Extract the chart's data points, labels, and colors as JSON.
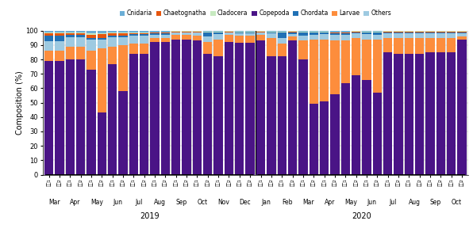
{
  "tick_labels": [
    "정스1",
    "정스2",
    "정스1",
    "정스2",
    "정스1",
    "정스2",
    "정스1",
    "정스2",
    "정스1",
    "정스2",
    "정스1",
    "정스2",
    "정스1",
    "정스2",
    "정스1",
    "정스2",
    "정스1",
    "정스2",
    "정스1",
    "정스2",
    "정스1",
    "정스2",
    "정스1",
    "정스2",
    "정스1",
    "정스2",
    "정스1",
    "정스2",
    "정스1",
    "정스2",
    "정스1",
    "정스2",
    "정스1",
    "정스2",
    "정스1",
    "정스2",
    "정스1",
    "정스2",
    "정스1",
    "정스2"
  ],
  "month_labels": [
    "Mar",
    "Apr",
    "May",
    "Jun",
    "Jul",
    "Aug",
    "Sep",
    "Oct",
    "Nov",
    "Dec",
    "Jan",
    "Feb",
    "Mar",
    "Apr",
    "May",
    "Jun",
    "Jul",
    "Aug",
    "Sep",
    "Oct"
  ],
  "year_labels": [
    "2019",
    "2020"
  ],
  "copepoda": [
    79,
    79,
    80,
    80,
    73,
    43,
    77,
    58,
    84,
    84,
    92,
    92,
    94,
    94,
    93,
    84,
    82,
    92,
    92,
    92,
    93,
    82,
    82,
    93,
    80,
    49,
    51,
    56,
    64,
    69,
    66,
    57,
    85,
    84,
    84,
    84,
    85,
    85,
    85,
    94
  ],
  "larvae": [
    7.0,
    7.0,
    9.0,
    9.0,
    13.0,
    45.0,
    12.0,
    32.0,
    7.0,
    7.0,
    3.0,
    3.0,
    3.0,
    3.0,
    3.5,
    8.0,
    12.0,
    5.0,
    5.0,
    5.0,
    4.0,
    13.0,
    9.0,
    3.0,
    13.0,
    45.0,
    43.0,
    37.0,
    30.0,
    26.0,
    28.0,
    37.0,
    10.0,
    11.0,
    11.0,
    11.0,
    10.0,
    10.0,
    10.0,
    2.0
  ],
  "others": [
    6.5,
    6.5,
    6.5,
    6.5,
    8.0,
    6.0,
    6.5,
    5.5,
    5.5,
    5.5,
    2.0,
    2.0,
    1.5,
    1.5,
    2.0,
    4.0,
    3.5,
    1.5,
    1.5,
    1.5,
    1.5,
    3.0,
    4.0,
    1.5,
    3.5,
    3.0,
    3.5,
    4.0,
    4.0,
    3.0,
    3.5,
    3.0,
    3.0,
    3.0,
    3.0,
    3.0,
    3.0,
    3.0,
    3.0,
    2.0
  ],
  "chordata": [
    4.0,
    4.0,
    1.5,
    1.5,
    1.0,
    1.0,
    1.0,
    1.0,
    1.0,
    1.0,
    1.0,
    1.0,
    0.5,
    0.5,
    0.5,
    2.5,
    1.0,
    0.5,
    0.5,
    0.5,
    0.5,
    0.5,
    3.5,
    1.5,
    2.0,
    1.5,
    1.0,
    1.0,
    1.0,
    1.0,
    1.0,
    1.5,
    1.0,
    1.0,
    1.0,
    1.0,
    1.0,
    1.0,
    1.0,
    1.0
  ],
  "chaetognatha": [
    1.5,
    1.5,
    1.0,
    1.0,
    2.0,
    2.5,
    1.5,
    1.5,
    0.5,
    0.5,
    0.5,
    0.5,
    0.5,
    0.5,
    0.5,
    0.5,
    0.5,
    0.5,
    0.5,
    0.5,
    0.5,
    0.5,
    0.5,
    0.5,
    0.5,
    0.5,
    0.5,
    0.5,
    0.5,
    0.5,
    0.5,
    0.5,
    0.5,
    0.5,
    0.5,
    0.5,
    0.5,
    0.5,
    0.5,
    0.5
  ],
  "cladocera": [
    0.5,
    0.5,
    0.5,
    0.5,
    1.0,
    0.5,
    0.5,
    0.5,
    0.5,
    0.5,
    0.5,
    0.5,
    0.5,
    0.5,
    0.5,
    0.5,
    0.5,
    0.5,
    0.5,
    0.5,
    0.5,
    0.5,
    0.5,
    0.5,
    0.5,
    0.5,
    0.5,
    0.5,
    0.5,
    0.5,
    0.5,
    0.5,
    0.5,
    0.5,
    0.5,
    0.5,
    0.5,
    0.5,
    0.5,
    0.5
  ],
  "cnidaria": [
    1.5,
    1.5,
    1.5,
    1.5,
    2.0,
    2.0,
    1.5,
    1.5,
    1.5,
    1.5,
    1.0,
    1.0,
    0.0,
    0.0,
    0.0,
    0.5,
    0.5,
    0.0,
    0.5,
    0.5,
    0.0,
    0.5,
    0.5,
    0.0,
    0.5,
    0.5,
    0.5,
    1.0,
    1.0,
    0.0,
    0.5,
    0.5,
    0.0,
    0.0,
    0.0,
    0.0,
    0.0,
    0.0,
    0.0,
    0.0
  ],
  "colors": {
    "cnidaria": "#6baed6",
    "chaetognatha": "#e6550d",
    "cladocera": "#c7e9c0",
    "copepoda": "#4a1486",
    "chordata": "#2171b5",
    "larvae": "#fd8d3c",
    "others": "#9ecae1"
  },
  "ylabel": "Composition (%)",
  "ylim": [
    0,
    100
  ],
  "bar_width": 0.85,
  "bg_color": "#ffffff"
}
